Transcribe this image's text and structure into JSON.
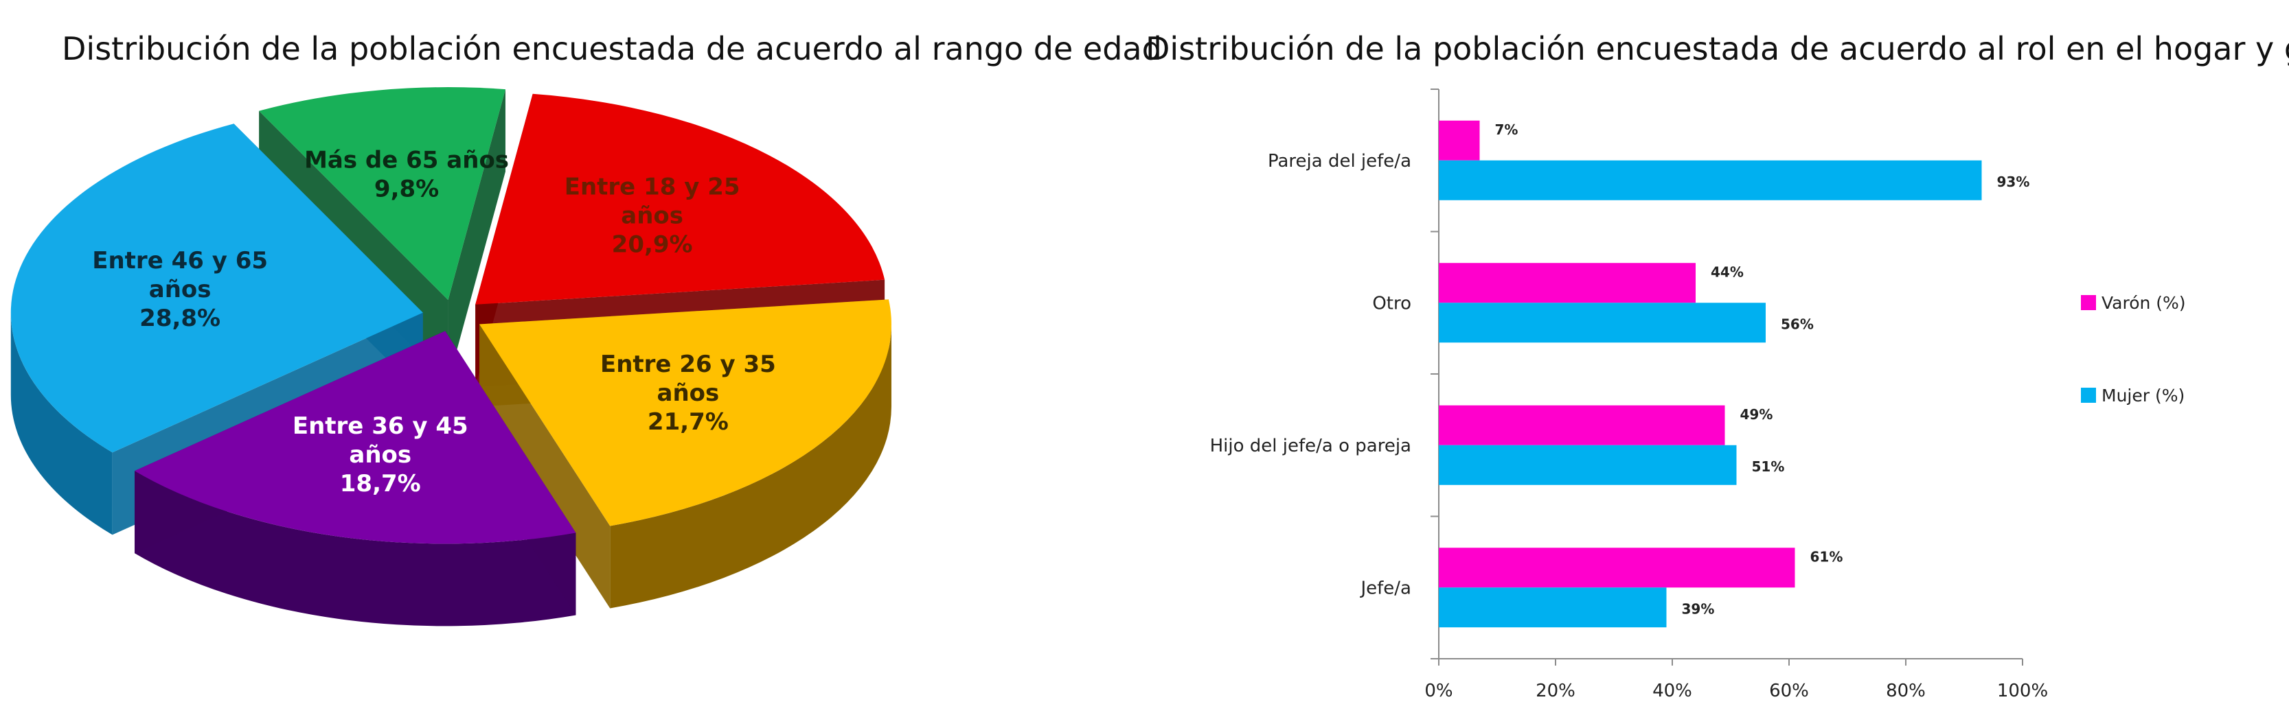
{
  "chart_data": [
    {
      "type": "pie",
      "title": "Distribución de la población encuestada de acuerdo al rango de edad",
      "slices": [
        {
          "label_lines": [
            "Entre 18 y 25",
            "años",
            "20,9%"
          ],
          "value": 20.9,
          "color": "#e80000",
          "side": "#7a0000",
          "text_color": "#6b1e00"
        },
        {
          "label_lines": [
            "Entre 26 y 35",
            "años",
            "21,7%"
          ],
          "value": 21.7,
          "color": "#ffc000",
          "side": "#8a6400",
          "text_color": "#3a2a00"
        },
        {
          "label_lines": [
            "Entre 36 y 45",
            "años",
            "18,7%"
          ],
          "value": 18.7,
          "color": "#7a00a6",
          "side": "#3e0060",
          "text_color": "#ffffff"
        },
        {
          "label_lines": [
            "Entre 46 y 65",
            "años",
            "28,8%"
          ],
          "value": 28.8,
          "color": "#14aae8",
          "side": "#0a6d9c",
          "text_color": "#0a2a3a"
        },
        {
          "label_lines": [
            "Más de 65 años",
            "9,8%"
          ],
          "value": 9.8,
          "color": "#18b058",
          "side": "#0a5a2c",
          "text_color": "#0a2a14"
        }
      ]
    },
    {
      "type": "bar",
      "orientation": "horizontal",
      "title": "Distribución de la población encuestada de acuerdo al rol en el hogar y género",
      "categories": [
        "Pareja del jefe/a",
        "Otro",
        "Hijo del jefe/a o pareja",
        "Jefe/a"
      ],
      "series": [
        {
          "name": "Varón (%)",
          "values": [
            7,
            44,
            49,
            61
          ],
          "labels": [
            "7%",
            "44%",
            "49%",
            "61%"
          ],
          "color": "#ff00cc"
        },
        {
          "name": "Mujer (%)",
          "values": [
            93,
            56,
            51,
            39
          ],
          "labels": [
            "93%",
            "56%",
            "51%",
            "39%"
          ],
          "color": "#00b0f0"
        }
      ],
      "xlim": [
        0,
        100
      ],
      "ticks": [
        "0%",
        "20%",
        "40%",
        "60%",
        "80%",
        "100%"
      ],
      "legend_position": "right",
      "grid": false
    }
  ]
}
